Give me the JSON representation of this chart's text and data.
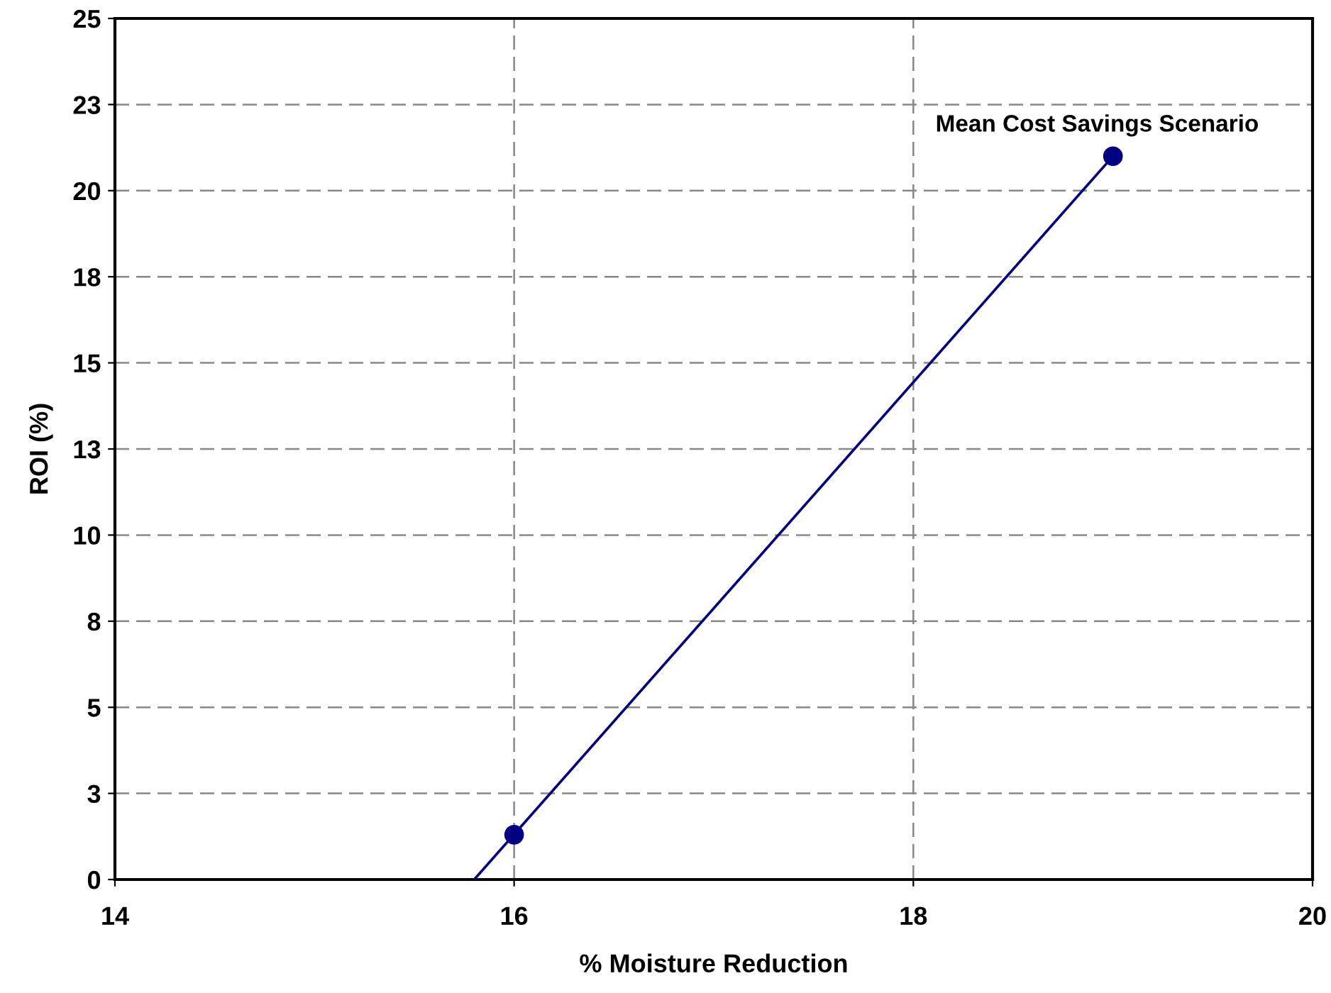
{
  "chart_data": {
    "type": "scatter",
    "xlabel": "% Moisture Reduction",
    "ylabel": "ROI (%)",
    "series": [
      {
        "type": "line",
        "color": "#000080",
        "x": [
          15.8,
          19
        ],
        "values": [
          0,
          21
        ],
        "marker": "none"
      },
      {
        "color": "#000080",
        "x": [
          16,
          19
        ],
        "values": [
          1.3,
          21
        ],
        "marker": "circle"
      }
    ],
    "annotations": [
      {
        "text": "Mean Cost Savings Scenario",
        "x": 19,
        "y": 21
      }
    ],
    "xlim": [
      14,
      20
    ],
    "xticks": [
      14,
      16,
      18,
      20
    ],
    "ylim": [
      0,
      25
    ],
    "yticks": [
      0,
      {
        "value": 2.5,
        "label": "3"
      },
      5,
      {
        "value": 7.5,
        "label": "8"
      },
      10,
      {
        "value": 12.5,
        "label": "13"
      },
      15,
      {
        "value": 17.5,
        "label": "18"
      },
      20,
      {
        "value": 22.5,
        "label": "23"
      },
      25
    ],
    "grid": true
  }
}
